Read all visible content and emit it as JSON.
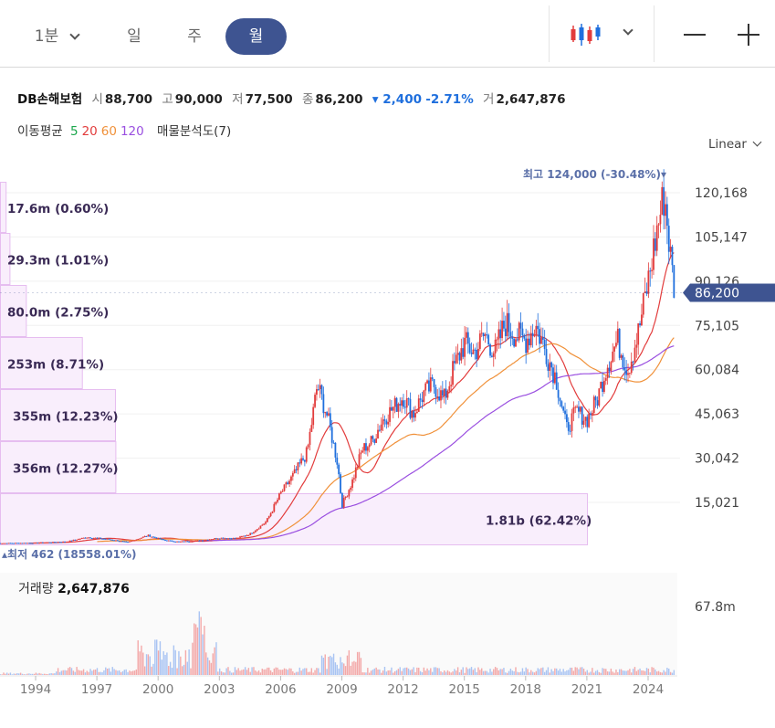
{
  "toolbar": {
    "periods": [
      "1분",
      "일",
      "주",
      "월"
    ],
    "active_period": "월",
    "chart_type_icon": "candlestick-icon",
    "zoom_out_icon": "minus-icon",
    "zoom_in_icon": "plus-icon"
  },
  "quote": {
    "name": "DB손해보험",
    "open_label": "시",
    "open": "88,700",
    "high_label": "고",
    "high": "90,000",
    "low_label": "저",
    "low": "77,500",
    "close_label": "종",
    "close": "86,200",
    "change": "▾ 2,400",
    "change_pct": "-2.71%",
    "volume_label": "거",
    "volume": "2,647,876"
  },
  "moving_average": {
    "label": "이동평균",
    "periods": [
      "5",
      "20",
      "60",
      "120"
    ],
    "colors": [
      "#1aa64b",
      "#e23c3c",
      "#f0913a",
      "#9a4fe0"
    ],
    "volume_profile_label": "매물분석도(7)"
  },
  "scale_mode": "Linear",
  "price_axis": {
    "ticks": [
      "120,168",
      "105,147",
      "90,126",
      "75,105",
      "60,084",
      "45,063",
      "30,042",
      "15,021"
    ],
    "current_price": "86,200"
  },
  "markers": {
    "high": "최고 124,000 (-30.48%)▾",
    "low": "▴최저 462 (18558.01%)"
  },
  "volume_profile": [
    {
      "label": "17.6m (0.60%)",
      "fraction": 0.006
    },
    {
      "label": "29.3m (1.01%)",
      "fraction": 0.0101
    },
    {
      "label": "80.0m (2.75%)",
      "fraction": 0.0275
    },
    {
      "label": "253m (8.71%)",
      "fraction": 0.0871
    },
    {
      "label": "355m (12.23%)",
      "fraction": 0.1223
    },
    {
      "label": "356m (12.27%)",
      "fraction": 0.1227
    },
    {
      "label": "1.81b (62.42%)",
      "fraction": 0.6242
    }
  ],
  "volume_panel": {
    "label": "거래량",
    "value": "2,647,876",
    "axis_tick": "67.8m"
  },
  "time_axis": [
    "1994",
    "1997",
    "2000",
    "2003",
    "2006",
    "2009",
    "2012",
    "2015",
    "2018",
    "2021",
    "2024"
  ],
  "colors": {
    "accent": "#3e5491",
    "up": "#e23c3c",
    "down": "#1f6fdd",
    "profile_fill": "#f9eefc",
    "profile_stroke": "#e6bdf0"
  },
  "chart_data": {
    "type": "candlestick",
    "title": "DB손해보험",
    "interval": "monthly",
    "ylim": [
      0,
      130000
    ],
    "ylabel": "",
    "y_ticks": [
      15021,
      30042,
      45063,
      60084,
      75105,
      90126,
      105147,
      120168
    ],
    "x_ticks": [
      1994,
      1997,
      2000,
      2003,
      2006,
      2009,
      2012,
      2015,
      2018,
      2021,
      2024
    ],
    "series": [
      {
        "name": "close",
        "x": [
          1992.5,
          1994,
          1995.5,
          1996.5,
          1997.5,
          1998.5,
          1999.5,
          2000.3,
          2001,
          2002,
          2003,
          2003.8,
          2004.5,
          2005.3,
          2006,
          2006.7,
          2007.3,
          2007.8,
          2008.3,
          2008.8,
          2009,
          2009.5,
          2010,
          2010.5,
          2011,
          2011.5,
          2012,
          2012.5,
          2013,
          2013.5,
          2014,
          2014.5,
          2015,
          2015.5,
          2016,
          2016.5,
          2017,
          2017.5,
          2018,
          2018.5,
          2019,
          2019.5,
          2020,
          2020.5,
          2021,
          2021.5,
          2022,
          2022.5,
          2023,
          2023.5,
          2024,
          2024.5,
          2024.8,
          2025.1,
          2025.3
        ],
        "values": [
          1200,
          1300,
          1700,
          3200,
          2600,
          1500,
          3800,
          2200,
          1700,
          2000,
          3000,
          2800,
          4300,
          8500,
          18000,
          25000,
          32000,
          55000,
          44000,
          28000,
          14000,
          22000,
          33000,
          36000,
          43000,
          47000,
          51000,
          45000,
          52000,
          55000,
          50000,
          61000,
          69000,
          66000,
          72000,
          66000,
          76000,
          72000,
          70000,
          75000,
          66000,
          57000,
          40000,
          46000,
          43000,
          50000,
          62000,
          70000,
          60000,
          72000,
          90000,
          110000,
          120000,
          98000,
          86200
        ]
      },
      {
        "name": "ma120",
        "x": [
          1994,
          2000,
          2003,
          2006,
          2009,
          2012,
          2015,
          2018,
          2021,
          2024,
          2025.3
        ],
        "values": [
          0,
          0,
          500,
          2500,
          12000,
          26000,
          37000,
          48000,
          56000,
          60000,
          70000
        ]
      }
    ],
    "volume": {
      "ylim": [
        0,
        80000000
      ],
      "y_ticks": [
        67800000
      ],
      "last": 2647876
    }
  }
}
